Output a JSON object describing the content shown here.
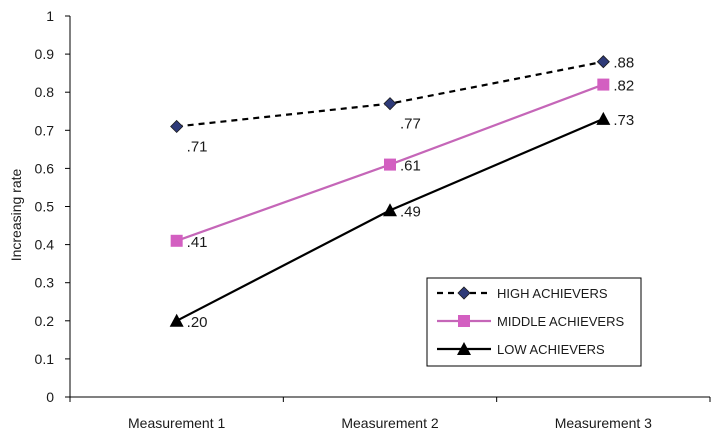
{
  "chart_data": {
    "type": "line",
    "ylabel": "Increasing rate",
    "categories": [
      "Measurement 1",
      "Measurement 2",
      "Measurement 3"
    ],
    "ylim": [
      0,
      1
    ],
    "yticks": [
      "0",
      "0.1",
      "0.2",
      "0.3",
      "0.4",
      "0.5",
      "0.6",
      "0.7",
      "0.8",
      "0.9",
      "1"
    ],
    "grid": false,
    "legend_position": "bottom-right",
    "series": [
      {
        "name": "HIGH ACHIEVERS",
        "values": [
          0.71,
          0.77,
          0.88
        ],
        "labels": [
          ".71",
          ".77",
          ".88"
        ],
        "color": "#000000",
        "marker_color": "#2e3a78",
        "marker": "diamond",
        "line_style": "dashed",
        "label_placement": [
          "below",
          "below",
          "right"
        ]
      },
      {
        "name": "MIDDLE ACHIEVERS",
        "values": [
          0.41,
          0.61,
          0.82
        ],
        "labels": [
          ".41",
          ".61",
          ".82"
        ],
        "color": "#c566b8",
        "marker_color": "#d35fc1",
        "marker": "square",
        "line_style": "solid",
        "label_placement": [
          "right",
          "right",
          "right"
        ]
      },
      {
        "name": "LOW ACHIEVERS",
        "values": [
          0.2,
          0.49,
          0.73
        ],
        "labels": [
          ".20",
          ".49",
          ".73"
        ],
        "color": "#000000",
        "marker_color": "#000000",
        "marker": "triangle",
        "line_style": "solid",
        "label_placement": [
          "right",
          "right",
          "right"
        ]
      }
    ]
  }
}
